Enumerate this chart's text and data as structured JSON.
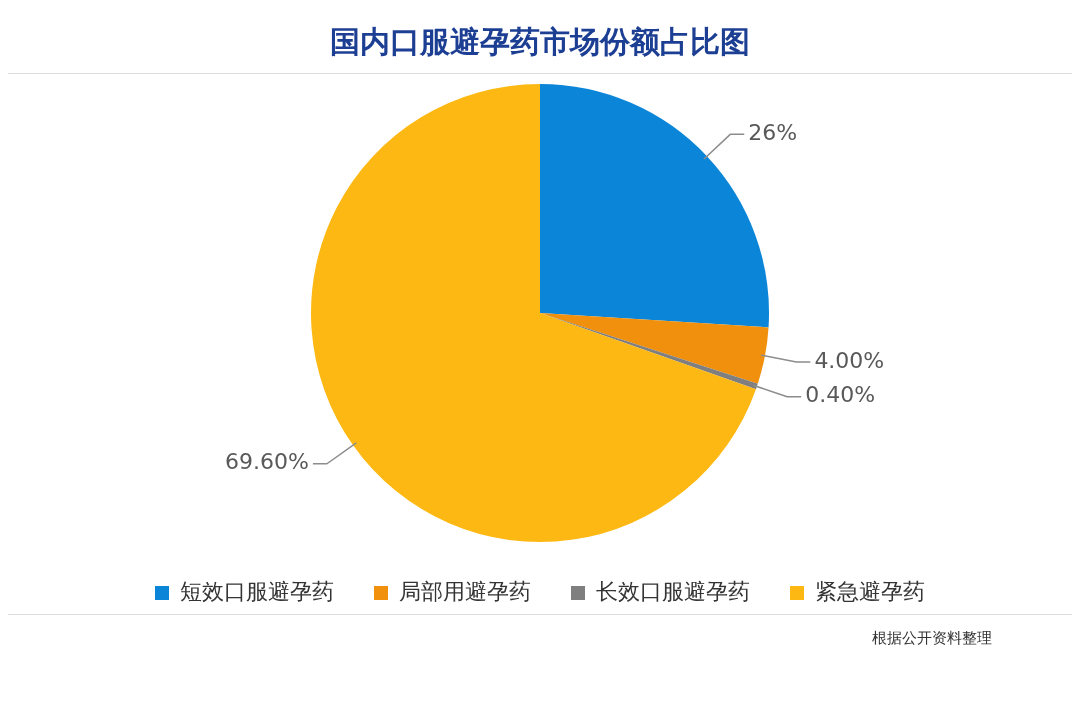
{
  "chart_data": {
    "type": "pie",
    "title": "国内口服避孕药市场份额占比图",
    "categories": [
      "短效口服避孕药",
      "局部用避孕药",
      "长效口服避孕药",
      "紧急避孕药"
    ],
    "values": [
      26,
      4,
      0.4,
      69.6
    ],
    "colors": [
      "#0a85d8",
      "#f0900c",
      "#7f7f7f",
      "#fdb813"
    ],
    "value_labels": [
      "26%",
      "4.00%",
      "0.40%",
      "69.60%"
    ],
    "legend": "bottom",
    "annotations": [
      "根据公开资料整理"
    ]
  }
}
